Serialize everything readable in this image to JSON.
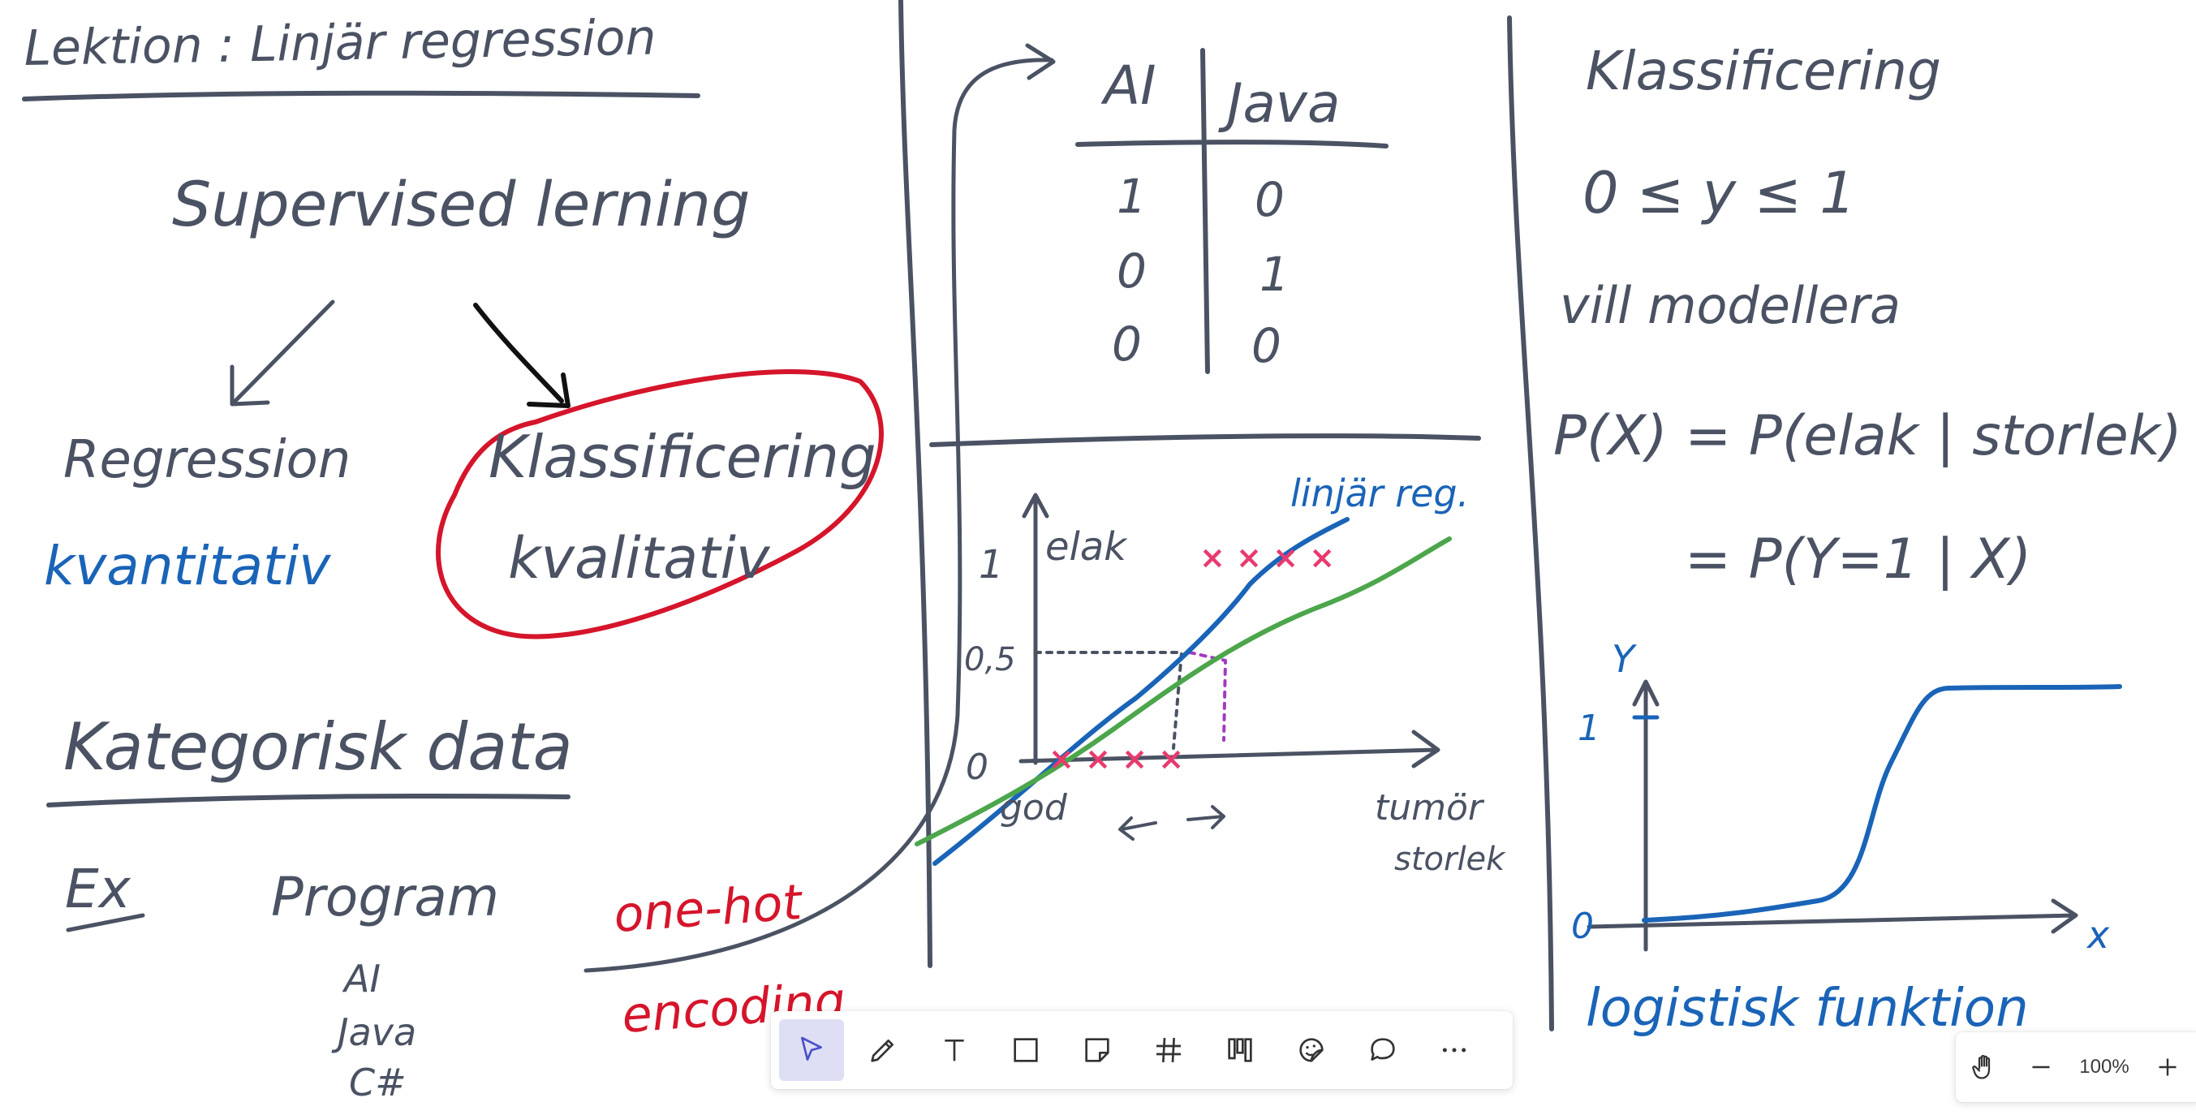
{
  "colors": {
    "ink": "#4a5263",
    "blue": "#1a64b8",
    "red": "#d5152b",
    "green": "#4ca64b",
    "pink": "#e83a6e",
    "purple": "#a33bbf",
    "black": "#111111"
  },
  "board": {
    "lesson_title": "Lektion : Linjär regression",
    "supervised": "Supervised lerning",
    "regression": "Regression",
    "kvantitativ": "kvantitativ",
    "klassificering": "Klassificering",
    "kvalitativ": "kvalitativ",
    "kategorisk": "Kategorisk data",
    "ex": "Ex",
    "program": "Program",
    "programs": [
      "AI",
      "Java",
      "C#"
    ],
    "one_hot": "one-hot",
    "encoding": "encoding",
    "table": {
      "headers": [
        "AI",
        "Java"
      ],
      "rows": [
        [
          "1",
          "0"
        ],
        [
          "0",
          "1"
        ],
        [
          "0",
          "0"
        ]
      ]
    },
    "graph": {
      "y1": "1",
      "y05": "0,5",
      "y0": "0",
      "elak": "elak",
      "god": "god",
      "linjar_reg": "linjär reg.",
      "tumor": "tumör",
      "storlek": "storlek",
      "x_marks_top": "× × × ×",
      "x_marks_bottom": "× × × ×"
    },
    "right": {
      "klassificering": "Klassificering",
      "ineq": "0 ≤ y ≤ 1",
      "vill": "vill modellera",
      "prob1": "P(X) = P(elak | storlek) =",
      "prob2": "= P(Y=1 | X)",
      "y_label": "Y",
      "x_label": "x",
      "one": "1",
      "zero": "0",
      "logistisk": "logistisk funktion"
    }
  },
  "toolbar": {
    "tools": [
      "select-icon",
      "pen-icon",
      "text-icon",
      "shape-icon",
      "sticky-note-icon",
      "grid-icon",
      "kanban-icon",
      "sticker-icon",
      "comment-icon",
      "more-icon"
    ]
  },
  "zoom": {
    "level": "100%"
  }
}
